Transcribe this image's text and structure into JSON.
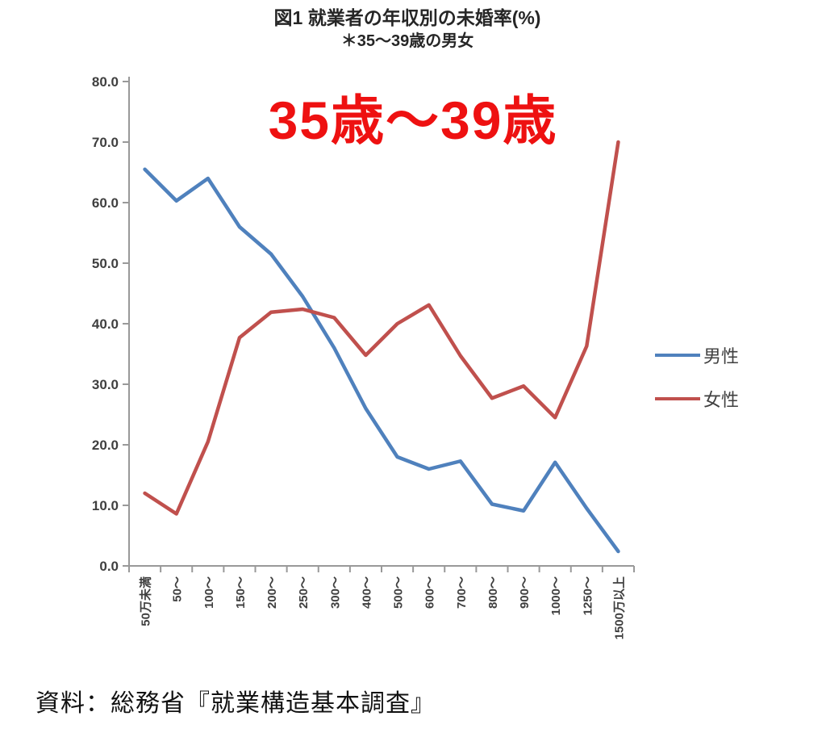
{
  "header": {
    "title": "図1 就業者の年収別の未婚率(%)",
    "subtitle": "＊35〜39歳の男女"
  },
  "annotation": {
    "text": "35歳〜39歳",
    "color": "#ee1111"
  },
  "chart_data": {
    "type": "line",
    "title": "図1 就業者の年収別の未婚率(%)",
    "subtitle": "＊35〜39歳の男女",
    "categories": [
      "50万未満",
      "50〜",
      "100〜",
      "150〜",
      "200〜",
      "250〜",
      "300〜",
      "400〜",
      "500〜",
      "600〜",
      "700〜",
      "800〜",
      "900〜",
      "1000〜",
      "1250〜",
      "1500万以上"
    ],
    "series": [
      {
        "key": "male",
        "name": "男性",
        "color": "#4f81bd",
        "values": [
          65.5,
          60.3,
          64.0,
          56.0,
          51.5,
          44.5,
          36.0,
          26.0,
          18.0,
          16.0,
          17.3,
          10.2,
          9.1,
          17.1,
          9.5,
          2.4
        ]
      },
      {
        "key": "female",
        "name": "女性",
        "color": "#c0504d",
        "values": [
          12.0,
          8.6,
          20.5,
          37.7,
          41.9,
          42.4,
          41.0,
          34.8,
          40.0,
          43.1,
          34.7,
          27.7,
          29.7,
          24.5,
          36.3,
          70.0
        ]
      }
    ],
    "xlabel": "",
    "ylabel": "",
    "ylim": [
      0,
      80
    ],
    "ytick_step": 10,
    "ytick_labels": [
      "0.0",
      "10.0",
      "20.0",
      "30.0",
      "40.0",
      "50.0",
      "60.0",
      "70.0",
      "80.0"
    ],
    "grid": false,
    "legend_position": "right",
    "axis_color": "#999999",
    "tick_label_color": "#3f3f3f"
  },
  "source": {
    "text": "資料：総務省『就業構造基本調査』"
  }
}
